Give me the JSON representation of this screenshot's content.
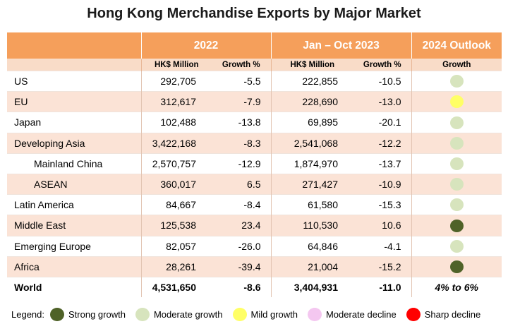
{
  "title": "Hong Kong Merchandise Exports by Major Market",
  "headers": {
    "group_2022": "2022",
    "group_2023": "Jan – Oct 2023",
    "group_outlook": "2024 Outlook",
    "sub_value_2022": "HK$ Million",
    "sub_growth_2022": "Growth %",
    "sub_value_2023": "HK$ Million",
    "sub_growth_2023": "Growth %",
    "sub_outlook": "Growth"
  },
  "rows": [
    {
      "market": "US",
      "value_2022": "292,705",
      "growth_2022": "-5.5",
      "value_2023": "222,855",
      "growth_2023": "-10.5",
      "outlook": "Moderate growth",
      "outlook_color": "#d7e4bd"
    },
    {
      "market": "EU",
      "value_2022": "312,617",
      "growth_2022": "-7.9",
      "value_2023": "228,690",
      "growth_2023": "-13.0",
      "outlook": "Mild growth",
      "outlook_color": "#ffff66"
    },
    {
      "market": "Japan",
      "value_2022": "102,488",
      "growth_2022": "-13.8",
      "value_2023": "69,895",
      "growth_2023": "-20.1",
      "outlook": "Moderate growth",
      "outlook_color": "#d7e4bd"
    },
    {
      "market": "Developing Asia",
      "value_2022": "3,422,168",
      "growth_2022": "-8.3",
      "value_2023": "2,541,068",
      "growth_2023": "-12.2",
      "outlook": "Moderate growth",
      "outlook_color": "#d7e4bd"
    },
    {
      "market": "Mainland China",
      "value_2022": "2,570,757",
      "growth_2022": "-12.9",
      "value_2023": "1,874,970",
      "growth_2023": "-13.7",
      "outlook": "Moderate growth",
      "outlook_color": "#d7e4bd"
    },
    {
      "market": "ASEAN",
      "value_2022": "360,017",
      "growth_2022": "6.5",
      "value_2023": "271,427",
      "growth_2023": "-10.9",
      "outlook": "Moderate growth",
      "outlook_color": "#d7e4bd"
    },
    {
      "market": "Latin America",
      "value_2022": "84,667",
      "growth_2022": "-8.4",
      "value_2023": "61,580",
      "growth_2023": "-15.3",
      "outlook": "Moderate growth",
      "outlook_color": "#d7e4bd"
    },
    {
      "market": "Middle East",
      "value_2022": "125,538",
      "growth_2022": "23.4",
      "value_2023": "110,530",
      "growth_2023": "10.6",
      "outlook": "Strong growth",
      "outlook_color": "#4f6228"
    },
    {
      "market": "Emerging Europe",
      "value_2022": "82,057",
      "growth_2022": "-26.0",
      "value_2023": "64,846",
      "growth_2023": "-4.1",
      "outlook": "Moderate growth",
      "outlook_color": "#d7e4bd"
    },
    {
      "market": "Africa",
      "value_2022": "28,261",
      "growth_2022": "-39.4",
      "value_2023": "21,004",
      "growth_2023": "-15.2",
      "outlook": "Strong growth",
      "outlook_color": "#4f6228"
    }
  ],
  "world": {
    "market": "World",
    "value_2022": "4,531,650",
    "growth_2022": "-8.6",
    "value_2023": "3,404,931",
    "growth_2023": "-11.0",
    "outlook": "4% to 6%"
  },
  "legend": {
    "label": "Legend:",
    "items": [
      {
        "label": "Strong growth",
        "color": "#4f6228"
      },
      {
        "label": "Moderate growth",
        "color": "#d7e4bd"
      },
      {
        "label": "Mild growth",
        "color": "#ffff66"
      },
      {
        "label": "Moderate decline",
        "color": "#f4c7f0"
      },
      {
        "label": "Sharp decline",
        "color": "#ff0000"
      }
    ]
  }
}
